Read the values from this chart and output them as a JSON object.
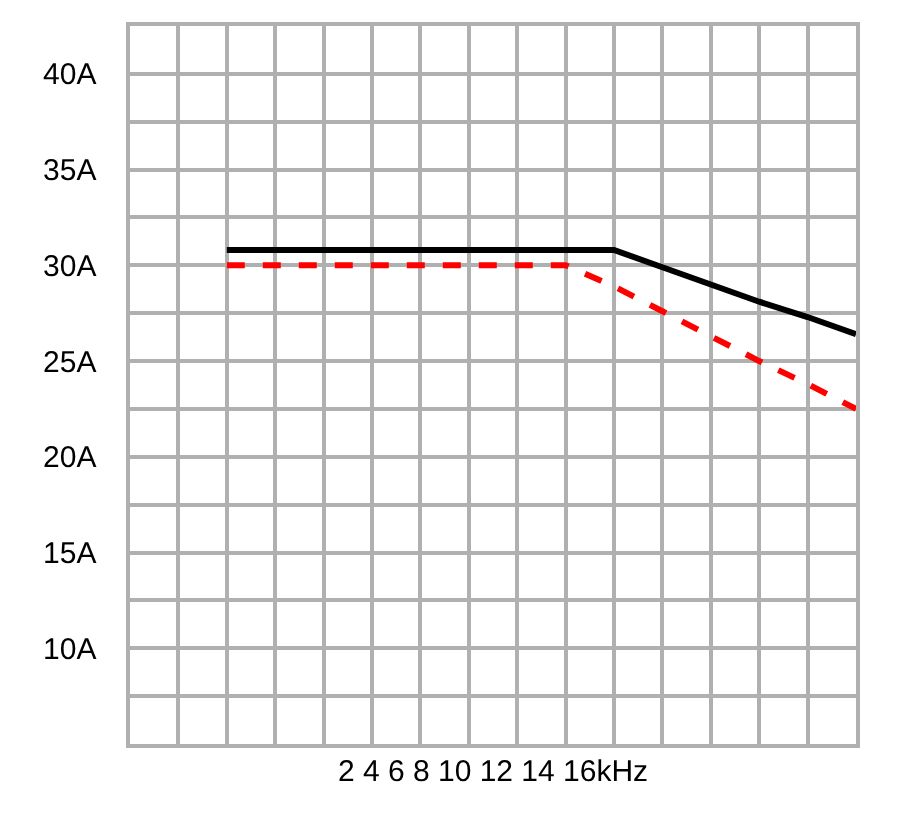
{
  "chart_data": {
    "type": "line",
    "xlabel": "2 4 6 8 10 12 14 16kHz",
    "categories": [
      null,
      null,
      null,
      null,
      null,
      null,
      null,
      null,
      null,
      null,
      null,
      null,
      null,
      null,
      null,
      null
    ],
    "series": [
      {
        "color": "#000000",
        "line_style": "solid",
        "values": [
          null,
          null,
          30.8,
          30.8,
          30.8,
          30.8,
          30.8,
          30.8,
          30.8,
          30.8,
          30.8,
          29.9,
          29.0,
          28.1,
          27.3,
          26.4
        ]
      },
      {
        "color": "#ff0000",
        "line_style": "dashed",
        "values": [
          null,
          null,
          30,
          30,
          30,
          30,
          30,
          30,
          30,
          30,
          28.9,
          27.6,
          26.3,
          25.0,
          23.8,
          22.5
        ]
      }
    ],
    "ylim": [
      5,
      42.5
    ],
    "yticks": [
      {
        "value": 5,
        "label": null
      },
      {
        "value": 7.5,
        "label": null
      },
      {
        "value": 10,
        "label": "10A"
      },
      {
        "value": 12.5,
        "label": null
      },
      {
        "value": 15,
        "label": "15A"
      },
      {
        "value": 17.5,
        "label": null
      },
      {
        "value": 20,
        "label": "20A"
      },
      {
        "value": 22.5,
        "label": null
      },
      {
        "value": 25,
        "label": "25A"
      },
      {
        "value": 27.5,
        "label": null
      },
      {
        "value": 30,
        "label": "30A"
      },
      {
        "value": 32.5,
        "label": null
      },
      {
        "value": 35,
        "label": "35A"
      },
      {
        "value": 37.5,
        "label": null
      },
      {
        "value": 40,
        "label": "40A"
      },
      {
        "value": 42.5,
        "label": null
      }
    ],
    "grid": true,
    "marker": "none"
  }
}
